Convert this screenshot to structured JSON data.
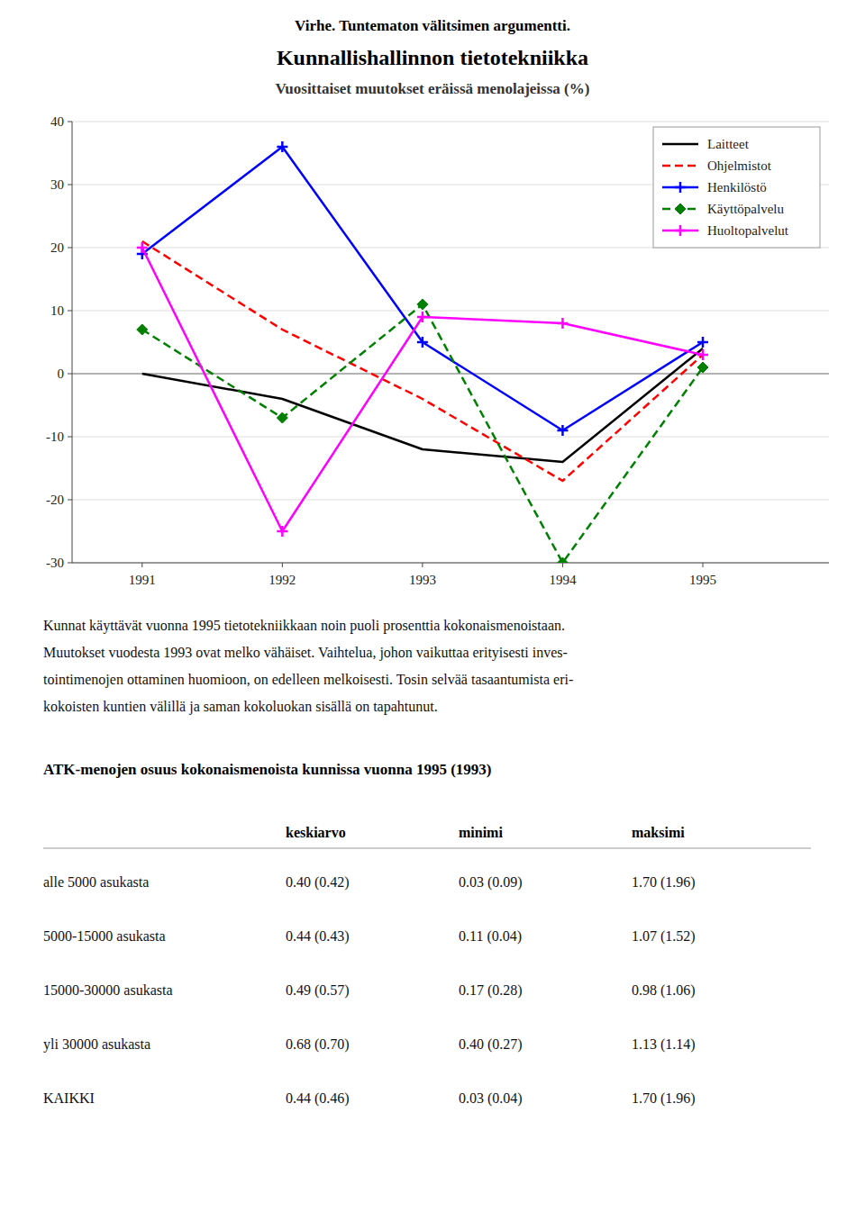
{
  "error_title": "Virhe. Tuntematon välitsimen argumentti.",
  "chart_data": {
    "type": "line",
    "title": "Kunnallishallinnon tietotekniikka",
    "subtitle": "Vuosittaiset muutokset eräissä menolajeissa (%)",
    "x": [
      1991,
      1992,
      1993,
      1994,
      1995
    ],
    "xlim": [
      1990.5,
      1995.9
    ],
    "xticks": [
      1991,
      1992,
      1993,
      1994,
      1995
    ],
    "ylim": [
      -30,
      40
    ],
    "yticks": [
      -30,
      -20,
      -10,
      0,
      10,
      20,
      30,
      40
    ],
    "grid": true,
    "legend": "upper-right",
    "series": [
      {
        "name": "Laitteet",
        "color": "#000000",
        "line_style": "solid",
        "marker": "none",
        "values": [
          0,
          -4,
          -12,
          -14,
          4
        ]
      },
      {
        "name": "Ohjelmistot",
        "color": "#ff0000",
        "line_style": "dashed",
        "marker": "none",
        "values": [
          21,
          7,
          -4,
          -17,
          3
        ]
      },
      {
        "name": "Henkilöstö",
        "color": "#0000ff",
        "line_style": "solid",
        "marker": "plus",
        "values": [
          19,
          36,
          5,
          -9,
          5
        ]
      },
      {
        "name": "Käyttöpalvelu",
        "color": "#008000",
        "line_style": "dashed",
        "marker": "diamond",
        "values": [
          7,
          -7,
          11,
          -30,
          1
        ]
      },
      {
        "name": "Huoltopalvelut",
        "color": "#ff00ff",
        "line_style": "solid",
        "marker": "plus",
        "values": [
          20,
          -25,
          9,
          8,
          3
        ]
      }
    ]
  },
  "paragraph": [
    "Kunnat käyttävät vuonna 1995 tietotekniikkaan noin puoli prosenttia kokonaismenoistaan.",
    "Muutokset vuodesta 1993 ovat melko vähäiset. Vaihtelua, johon vaikuttaa erityisesti inves-",
    "tointimenojen ottaminen huomioon, on edelleen melkoisesti. Tosin selvää tasaantumista eri-",
    "kokoisten kuntien välillä ja saman kokoluokan sisällä on tapahtunut."
  ],
  "table": {
    "title": "ATK-menojen osuus kokonaismenoista kunnissa vuonna 1995 (1993)",
    "headers": [
      "keskiarvo",
      "minimi",
      "maksimi"
    ],
    "rows": [
      [
        "alle 5000 asukasta",
        "0.40 (0.42)",
        "0.03 (0.09)",
        "1.70 (1.96)"
      ],
      [
        "5000-15000 asukasta",
        "0.44 (0.43)",
        "0.11 (0.04)",
        "1.07 (1.52)"
      ],
      [
        "15000-30000 asukasta",
        "0.49 (0.57)",
        "0.17 (0.28)",
        "0.98 (1.06)"
      ],
      [
        "yli 30000 asukasta",
        "0.68 (0.70)",
        "0.40 (0.27)",
        "1.13 (1.14)"
      ],
      [
        "KAIKKI",
        "0.44 (0.46)",
        "0.03 (0.04)",
        "1.70 (1.96)"
      ]
    ]
  }
}
